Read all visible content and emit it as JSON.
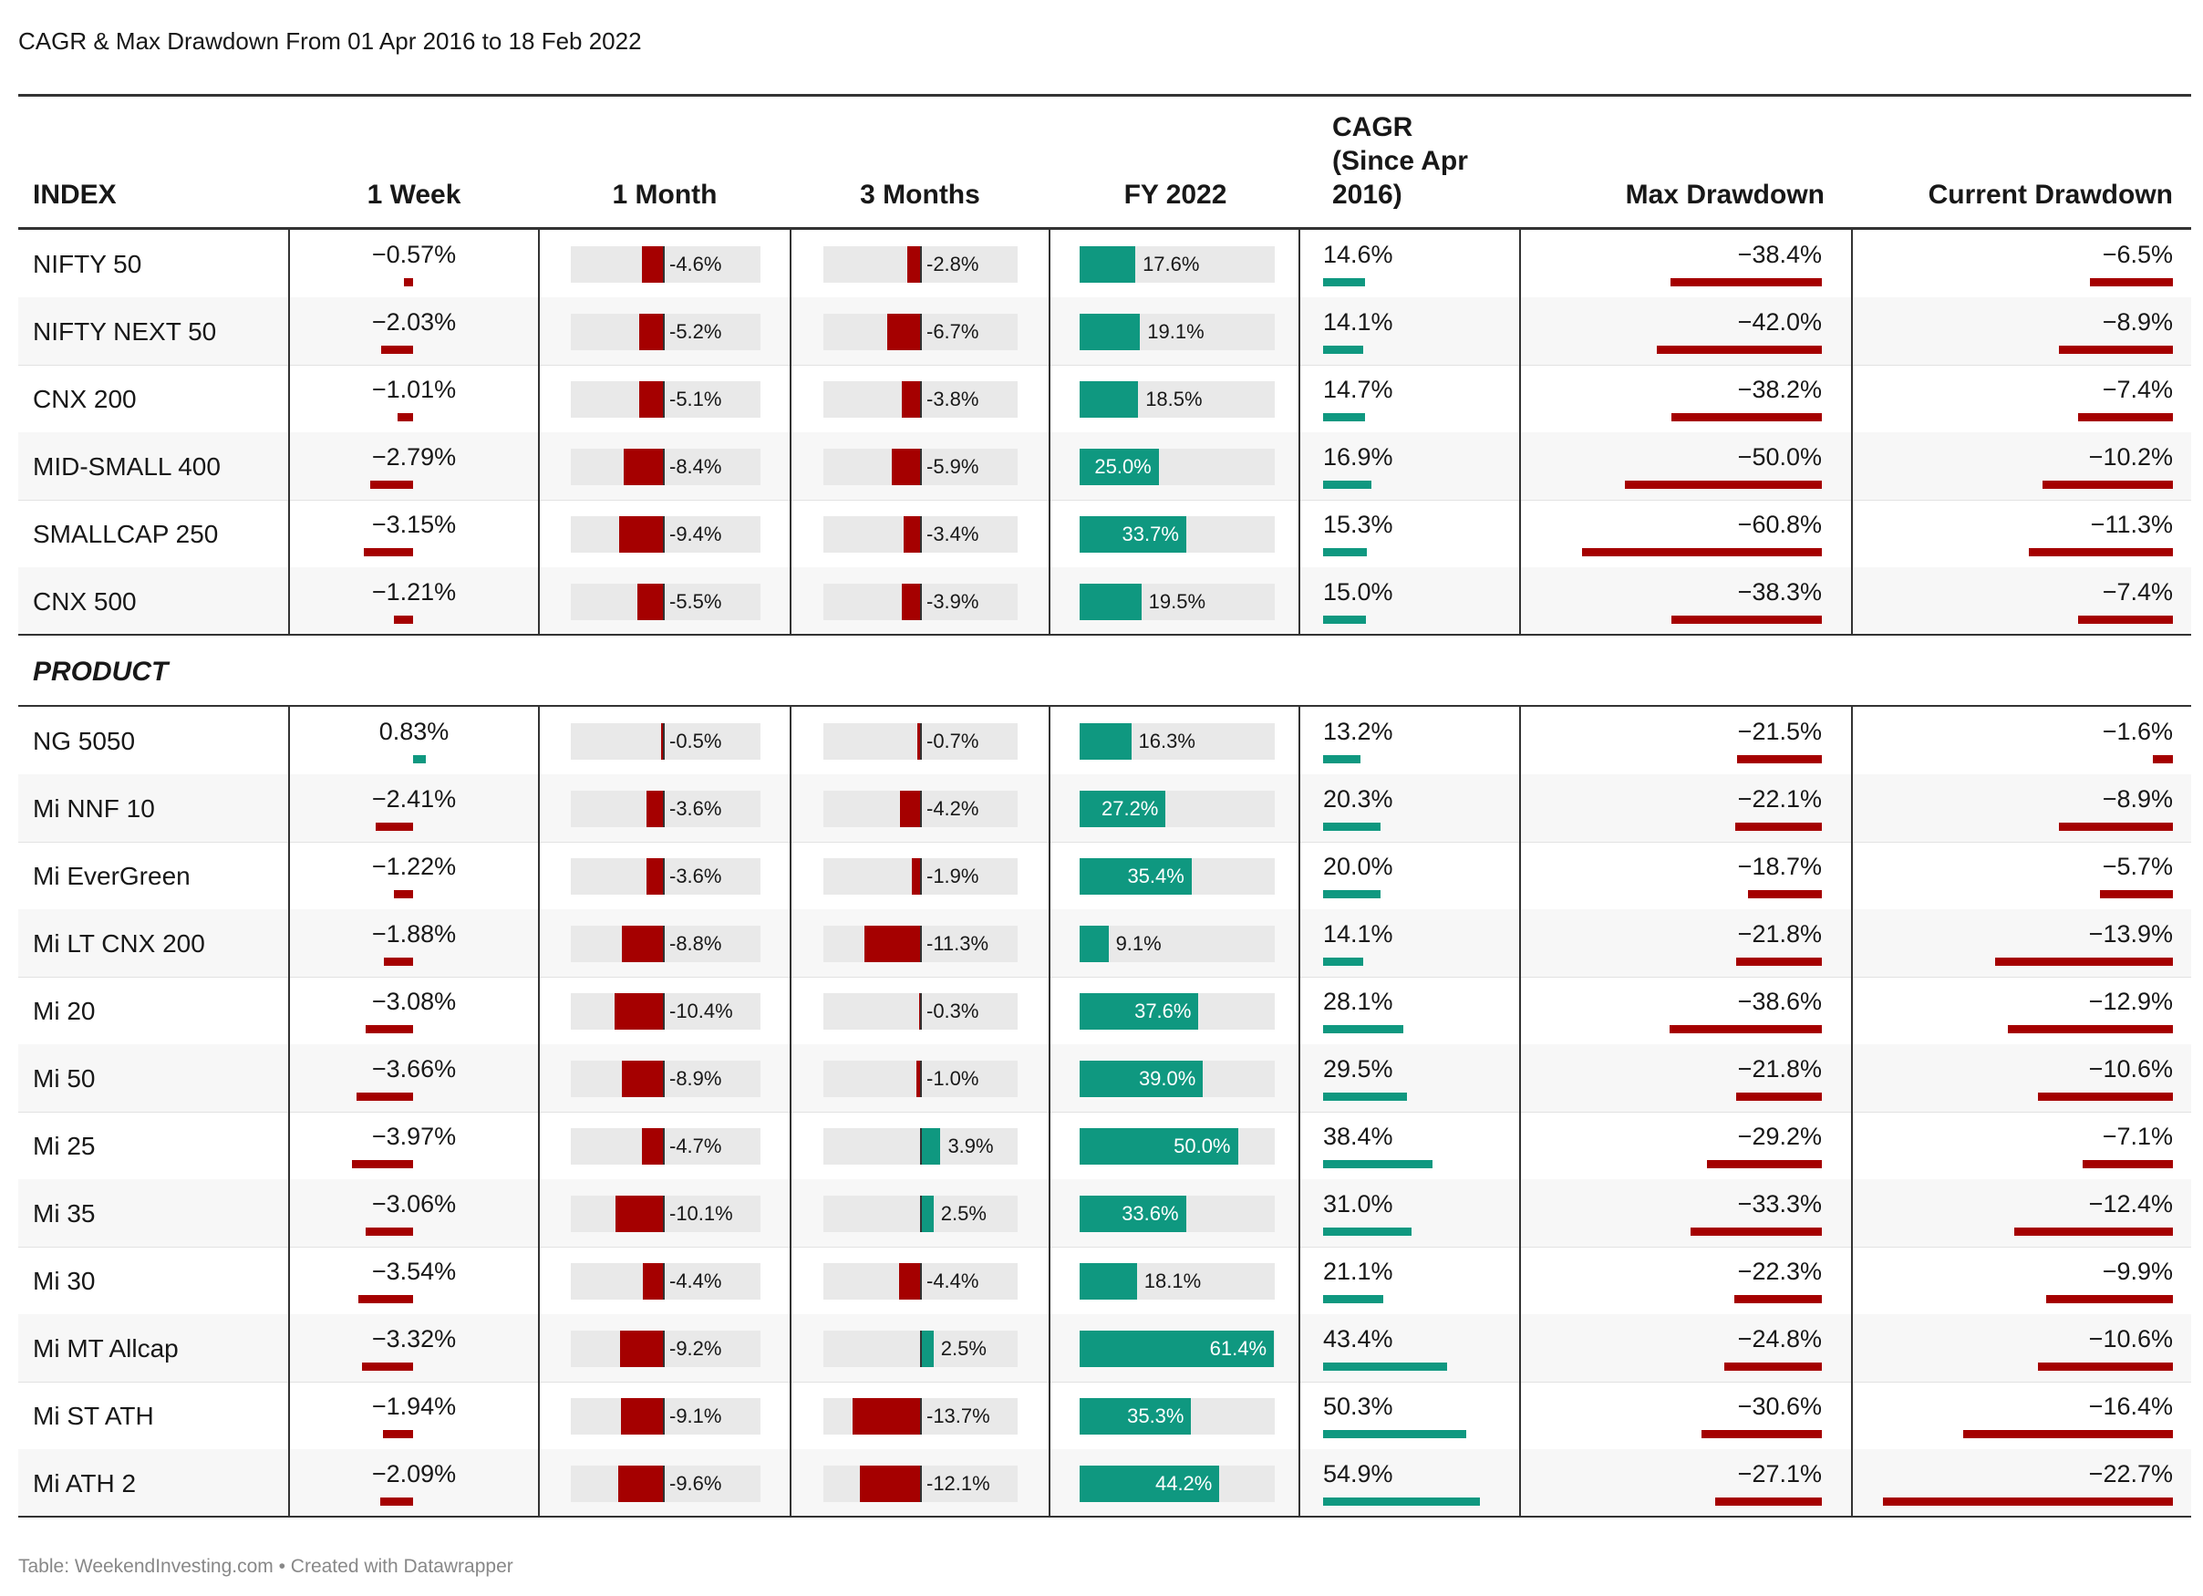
{
  "title": "CAGR & Max Drawdown From 01 Apr 2016 to 18 Feb 2022",
  "footer": "Table: WeekendInvesting.com • Created with Datawrapper",
  "headers": {
    "index": "INDEX",
    "week": "1 Week",
    "month": "1 Month",
    "three_months": "3 Months",
    "fy": "FY 2022",
    "cagr_line1": "CAGR",
    "cagr_line2": "(Since Apr",
    "cagr_line3": "2016)",
    "max_dd": "Max Drawdown",
    "cur_dd": "Current Drawdown"
  },
  "section_label": "PRODUCT",
  "colors": {
    "negative": "#a50000",
    "positive": "#0f9880",
    "bar_background": "#e9e9e9"
  },
  "chart_data": {
    "type": "table",
    "columns": [
      "INDEX",
      "1 Week",
      "1 Month",
      "3 Months",
      "FY 2022",
      "CAGR (Since Apr 2016)",
      "Max Drawdown",
      "Current Drawdown"
    ],
    "groups": [
      {
        "name": "INDEX",
        "rows": [
          {
            "name": "NIFTY 50",
            "week": -0.57,
            "month": -4.6,
            "three_months": -2.8,
            "fy": 17.6,
            "cagr": 14.6,
            "max_dd": -38.4,
            "cur_dd": -6.5,
            "week_label": "−0.57%",
            "month_label": "-4.6%",
            "three_months_label": "-2.8%",
            "fy_label": "17.6%",
            "cagr_label": "14.6%",
            "max_dd_label": "−38.4%",
            "cur_dd_label": "−6.5%"
          },
          {
            "name": "NIFTY NEXT 50",
            "week": -2.03,
            "month": -5.2,
            "three_months": -6.7,
            "fy": 19.1,
            "cagr": 14.1,
            "max_dd": -42.0,
            "cur_dd": -8.9,
            "week_label": "−2.03%",
            "month_label": "-5.2%",
            "three_months_label": "-6.7%",
            "fy_label": "19.1%",
            "cagr_label": "14.1%",
            "max_dd_label": "−42.0%",
            "cur_dd_label": "−8.9%"
          },
          {
            "name": "CNX 200",
            "week": -1.01,
            "month": -5.1,
            "three_months": -3.8,
            "fy": 18.5,
            "cagr": 14.7,
            "max_dd": -38.2,
            "cur_dd": -7.4,
            "week_label": "−1.01%",
            "month_label": "-5.1%",
            "three_months_label": "-3.8%",
            "fy_label": "18.5%",
            "cagr_label": "14.7%",
            "max_dd_label": "−38.2%",
            "cur_dd_label": "−7.4%"
          },
          {
            "name": "MID-SMALL 400",
            "week": -2.79,
            "month": -8.4,
            "three_months": -5.9,
            "fy": 25.0,
            "cagr": 16.9,
            "max_dd": -50.0,
            "cur_dd": -10.2,
            "week_label": "−2.79%",
            "month_label": "-8.4%",
            "three_months_label": "-5.9%",
            "fy_label": "25.0%",
            "cagr_label": "16.9%",
            "max_dd_label": "−50.0%",
            "cur_dd_label": "−10.2%"
          },
          {
            "name": "SMALLCAP 250",
            "week": -3.15,
            "month": -9.4,
            "three_months": -3.4,
            "fy": 33.7,
            "cagr": 15.3,
            "max_dd": -60.8,
            "cur_dd": -11.3,
            "week_label": "−3.15%",
            "month_label": "-9.4%",
            "three_months_label": "-3.4%",
            "fy_label": "33.7%",
            "cagr_label": "15.3%",
            "max_dd_label": "−60.8%",
            "cur_dd_label": "−11.3%"
          },
          {
            "name": "CNX 500",
            "week": -1.21,
            "month": -5.5,
            "three_months": -3.9,
            "fy": 19.5,
            "cagr": 15.0,
            "max_dd": -38.3,
            "cur_dd": -7.4,
            "week_label": "−1.21%",
            "month_label": "-5.5%",
            "three_months_label": "-3.9%",
            "fy_label": "19.5%",
            "cagr_label": "15.0%",
            "max_dd_label": "−38.3%",
            "cur_dd_label": "−7.4%"
          }
        ]
      },
      {
        "name": "PRODUCT",
        "rows": [
          {
            "name": "NG 5050",
            "week": 0.83,
            "month": -0.5,
            "three_months": -0.7,
            "fy": 16.3,
            "cagr": 13.2,
            "max_dd": -21.5,
            "cur_dd": -1.6,
            "week_label": "0.83%",
            "month_label": "-0.5%",
            "three_months_label": "-0.7%",
            "fy_label": "16.3%",
            "cagr_label": "13.2%",
            "max_dd_label": "−21.5%",
            "cur_dd_label": "−1.6%"
          },
          {
            "name": "Mi NNF 10",
            "week": -2.41,
            "month": -3.6,
            "three_months": -4.2,
            "fy": 27.2,
            "cagr": 20.3,
            "max_dd": -22.1,
            "cur_dd": -8.9,
            "week_label": "−2.41%",
            "month_label": "-3.6%",
            "three_months_label": "-4.2%",
            "fy_label": "27.2%",
            "cagr_label": "20.3%",
            "max_dd_label": "−22.1%",
            "cur_dd_label": "−8.9%"
          },
          {
            "name": "Mi EverGreen",
            "week": -1.22,
            "month": -3.6,
            "three_months": -1.9,
            "fy": 35.4,
            "cagr": 20.0,
            "max_dd": -18.7,
            "cur_dd": -5.7,
            "week_label": "−1.22%",
            "month_label": "-3.6%",
            "three_months_label": "-1.9%",
            "fy_label": "35.4%",
            "cagr_label": "20.0%",
            "max_dd_label": "−18.7%",
            "cur_dd_label": "−5.7%"
          },
          {
            "name": "Mi LT CNX 200",
            "week": -1.88,
            "month": -8.8,
            "three_months": -11.3,
            "fy": 9.1,
            "cagr": 14.1,
            "max_dd": -21.8,
            "cur_dd": -13.9,
            "week_label": "−1.88%",
            "month_label": "-8.8%",
            "three_months_label": "-11.3%",
            "fy_label": "9.1%",
            "cagr_label": "14.1%",
            "max_dd_label": "−21.8%",
            "cur_dd_label": "−13.9%"
          },
          {
            "name": "Mi 20",
            "week": -3.08,
            "month": -10.4,
            "three_months": -0.3,
            "fy": 37.6,
            "cagr": 28.1,
            "max_dd": -38.6,
            "cur_dd": -12.9,
            "week_label": "−3.08%",
            "month_label": "-10.4%",
            "three_months_label": "-0.3%",
            "fy_label": "37.6%",
            "cagr_label": "28.1%",
            "max_dd_label": "−38.6%",
            "cur_dd_label": "−12.9%"
          },
          {
            "name": "Mi 50",
            "week": -3.66,
            "month": -8.9,
            "three_months": -1.0,
            "fy": 39.0,
            "cagr": 29.5,
            "max_dd": -21.8,
            "cur_dd": -10.6,
            "week_label": "−3.66%",
            "month_label": "-8.9%",
            "three_months_label": "-1.0%",
            "fy_label": "39.0%",
            "cagr_label": "29.5%",
            "max_dd_label": "−21.8%",
            "cur_dd_label": "−10.6%"
          },
          {
            "name": "Mi 25",
            "week": -3.97,
            "month": -4.7,
            "three_months": 3.9,
            "fy": 50.0,
            "cagr": 38.4,
            "max_dd": -29.2,
            "cur_dd": -7.1,
            "week_label": "−3.97%",
            "month_label": "-4.7%",
            "three_months_label": "3.9%",
            "fy_label": "50.0%",
            "cagr_label": "38.4%",
            "max_dd_label": "−29.2%",
            "cur_dd_label": "−7.1%"
          },
          {
            "name": "Mi 35",
            "week": -3.06,
            "month": -10.1,
            "three_months": 2.5,
            "fy": 33.6,
            "cagr": 31.0,
            "max_dd": -33.3,
            "cur_dd": -12.4,
            "week_label": "−3.06%",
            "month_label": "-10.1%",
            "three_months_label": "2.5%",
            "fy_label": "33.6%",
            "cagr_label": "31.0%",
            "max_dd_label": "−33.3%",
            "cur_dd_label": "−12.4%"
          },
          {
            "name": "Mi 30",
            "week": -3.54,
            "month": -4.4,
            "three_months": -4.4,
            "fy": 18.1,
            "cagr": 21.1,
            "max_dd": -22.3,
            "cur_dd": -9.9,
            "week_label": "−3.54%",
            "month_label": "-4.4%",
            "three_months_label": "-4.4%",
            "fy_label": "18.1%",
            "cagr_label": "21.1%",
            "max_dd_label": "−22.3%",
            "cur_dd_label": "−9.9%"
          },
          {
            "name": "Mi MT Allcap",
            "week": -3.32,
            "month": -9.2,
            "three_months": 2.5,
            "fy": 61.4,
            "cagr": 43.4,
            "max_dd": -24.8,
            "cur_dd": -10.6,
            "week_label": "−3.32%",
            "month_label": "-9.2%",
            "three_months_label": "2.5%",
            "fy_label": "61.4%",
            "cagr_label": "43.4%",
            "max_dd_label": "−24.8%",
            "cur_dd_label": "−10.6%"
          },
          {
            "name": "Mi ST ATH",
            "week": -1.94,
            "month": -9.1,
            "three_months": -13.7,
            "fy": 35.3,
            "cagr": 50.3,
            "max_dd": -30.6,
            "cur_dd": -16.4,
            "week_label": "−1.94%",
            "month_label": "-9.1%",
            "three_months_label": "-13.7%",
            "fy_label": "35.3%",
            "cagr_label": "50.3%",
            "max_dd_label": "−30.6%",
            "cur_dd_label": "−16.4%"
          },
          {
            "name": "Mi ATH 2",
            "week": -2.09,
            "month": -9.6,
            "three_months": -12.1,
            "fy": 44.2,
            "cagr": 54.9,
            "max_dd": -27.1,
            "cur_dd": -22.7,
            "week_label": "−2.09%",
            "month_label": "-9.6%",
            "three_months_label": "-12.1%",
            "fy_label": "44.2%",
            "cagr_label": "54.9%",
            "max_dd_label": "−27.1%",
            "cur_dd_label": "−22.7%"
          }
        ]
      }
    ]
  }
}
